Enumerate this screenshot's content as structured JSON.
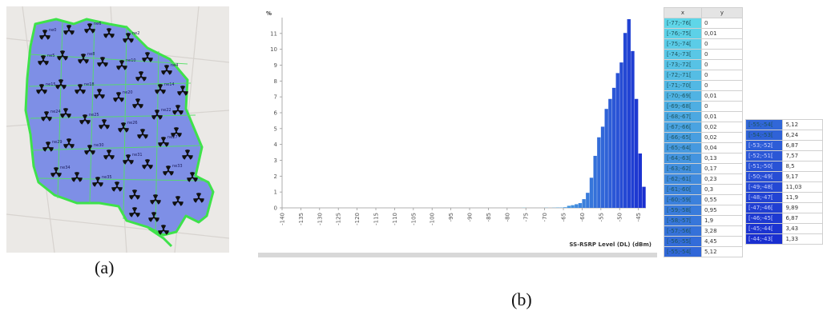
{
  "captions": {
    "a": "(a)",
    "b": "(b)"
  },
  "map": {
    "site_labels": [
      "ne0",
      "ne6",
      "ne2",
      "ne4",
      "ne5",
      "ne8",
      "ne10",
      "ne14",
      "ne15",
      "ne18",
      "ne20",
      "ne22",
      "ne24",
      "ne25",
      "ne26",
      "ne27",
      "ne29",
      "ne30",
      "ne31",
      "ne33",
      "ne34",
      "ne35"
    ]
  },
  "chart_data": {
    "type": "bar",
    "ylabel": "%",
    "xlabel": "SS-RSRP Level (DL) (dBm)",
    "xlim": [
      -140,
      -43
    ],
    "ylim": [
      0,
      12
    ],
    "x_ticks": [
      -140,
      -135,
      -130,
      -125,
      -120,
      -115,
      -110,
      -105,
      -100,
      -95,
      -90,
      -85,
      -80,
      -75,
      -70,
      -65,
      -60,
      -55,
      -50,
      -45
    ],
    "y_ticks": [
      0,
      1,
      2,
      3,
      4,
      5,
      6,
      7,
      8,
      9,
      10,
      11
    ],
    "grid": false,
    "bar_color_light": "#5fd6e8",
    "bar_color_dark": "#1a2fd0",
    "bins": [
      {
        "x": "[-77;-76[",
        "lo": -77,
        "y": 0,
        "y_text": "0"
      },
      {
        "x": "[-76;-75[",
        "lo": -76,
        "y": 0.01,
        "y_text": "0,01"
      },
      {
        "x": "[-75;-74[",
        "lo": -75,
        "y": 0,
        "y_text": "0"
      },
      {
        "x": "[-74;-73[",
        "lo": -74,
        "y": 0,
        "y_text": "0"
      },
      {
        "x": "[-73;-72[",
        "lo": -73,
        "y": 0,
        "y_text": "0"
      },
      {
        "x": "[-72;-71[",
        "lo": -72,
        "y": 0,
        "y_text": "0"
      },
      {
        "x": "[-71;-70[",
        "lo": -71,
        "y": 0,
        "y_text": "0"
      },
      {
        "x": "[-70;-69[",
        "lo": -70,
        "y": 0.01,
        "y_text": "0,01"
      },
      {
        "x": "[-69;-68[",
        "lo": -69,
        "y": 0,
        "y_text": "0"
      },
      {
        "x": "[-68;-67[",
        "lo": -68,
        "y": 0.01,
        "y_text": "0,01"
      },
      {
        "x": "[-67;-66[",
        "lo": -67,
        "y": 0.02,
        "y_text": "0,02"
      },
      {
        "x": "[-66;-65[",
        "lo": -66,
        "y": 0.02,
        "y_text": "0,02"
      },
      {
        "x": "[-65;-64[",
        "lo": -65,
        "y": 0.04,
        "y_text": "0,04"
      },
      {
        "x": "[-64;-63[",
        "lo": -64,
        "y": 0.13,
        "y_text": "0,13"
      },
      {
        "x": "[-63;-62[",
        "lo": -63,
        "y": 0.17,
        "y_text": "0,17"
      },
      {
        "x": "[-62;-61[",
        "lo": -62,
        "y": 0.23,
        "y_text": "0,23"
      },
      {
        "x": "[-61;-60[",
        "lo": -61,
        "y": 0.3,
        "y_text": "0,3"
      },
      {
        "x": "[-60;-59[",
        "lo": -60,
        "y": 0.55,
        "y_text": "0,55"
      },
      {
        "x": "[-59;-58[",
        "lo": -59,
        "y": 0.95,
        "y_text": "0,95"
      },
      {
        "x": "[-58;-57[",
        "lo": -58,
        "y": 1.9,
        "y_text": "1,9"
      },
      {
        "x": "[-57;-56[",
        "lo": -57,
        "y": 3.28,
        "y_text": "3,28"
      },
      {
        "x": "[-56;-55[",
        "lo": -56,
        "y": 4.45,
        "y_text": "4,45"
      },
      {
        "x": "[-55;-54[",
        "lo": -55,
        "y": 5.12,
        "y_text": "5,12"
      },
      {
        "x": "[-54;-53[",
        "lo": -54,
        "y": 6.24,
        "y_text": "6,24"
      },
      {
        "x": "[-53;-52[",
        "lo": -53,
        "y": 6.87,
        "y_text": "6,87"
      },
      {
        "x": "[-52;-51[",
        "lo": -52,
        "y": 7.57,
        "y_text": "7,57"
      },
      {
        "x": "[-51;-50[",
        "lo": -51,
        "y": 8.5,
        "y_text": "8,5"
      },
      {
        "x": "[-50;-49[",
        "lo": -50,
        "y": 9.17,
        "y_text": "9,17"
      },
      {
        "x": "[-49;-48[",
        "lo": -49,
        "y": 11.03,
        "y_text": "11,03"
      },
      {
        "x": "[-48;-47[",
        "lo": -48,
        "y": 11.9,
        "y_text": "11,9"
      },
      {
        "x": "[-47;-46[",
        "lo": -47,
        "y": 9.89,
        "y_text": "9,89"
      },
      {
        "x": "[-46;-45[",
        "lo": -46,
        "y": 6.87,
        "y_text": "6,87"
      },
      {
        "x": "[-45;-44[",
        "lo": -45,
        "y": 3.43,
        "y_text": "3,43"
      },
      {
        "x": "[-44;-43[",
        "lo": -44,
        "y": 1.33,
        "y_text": "1,33"
      }
    ]
  },
  "table": {
    "col_x": "x",
    "col_y": "y"
  }
}
